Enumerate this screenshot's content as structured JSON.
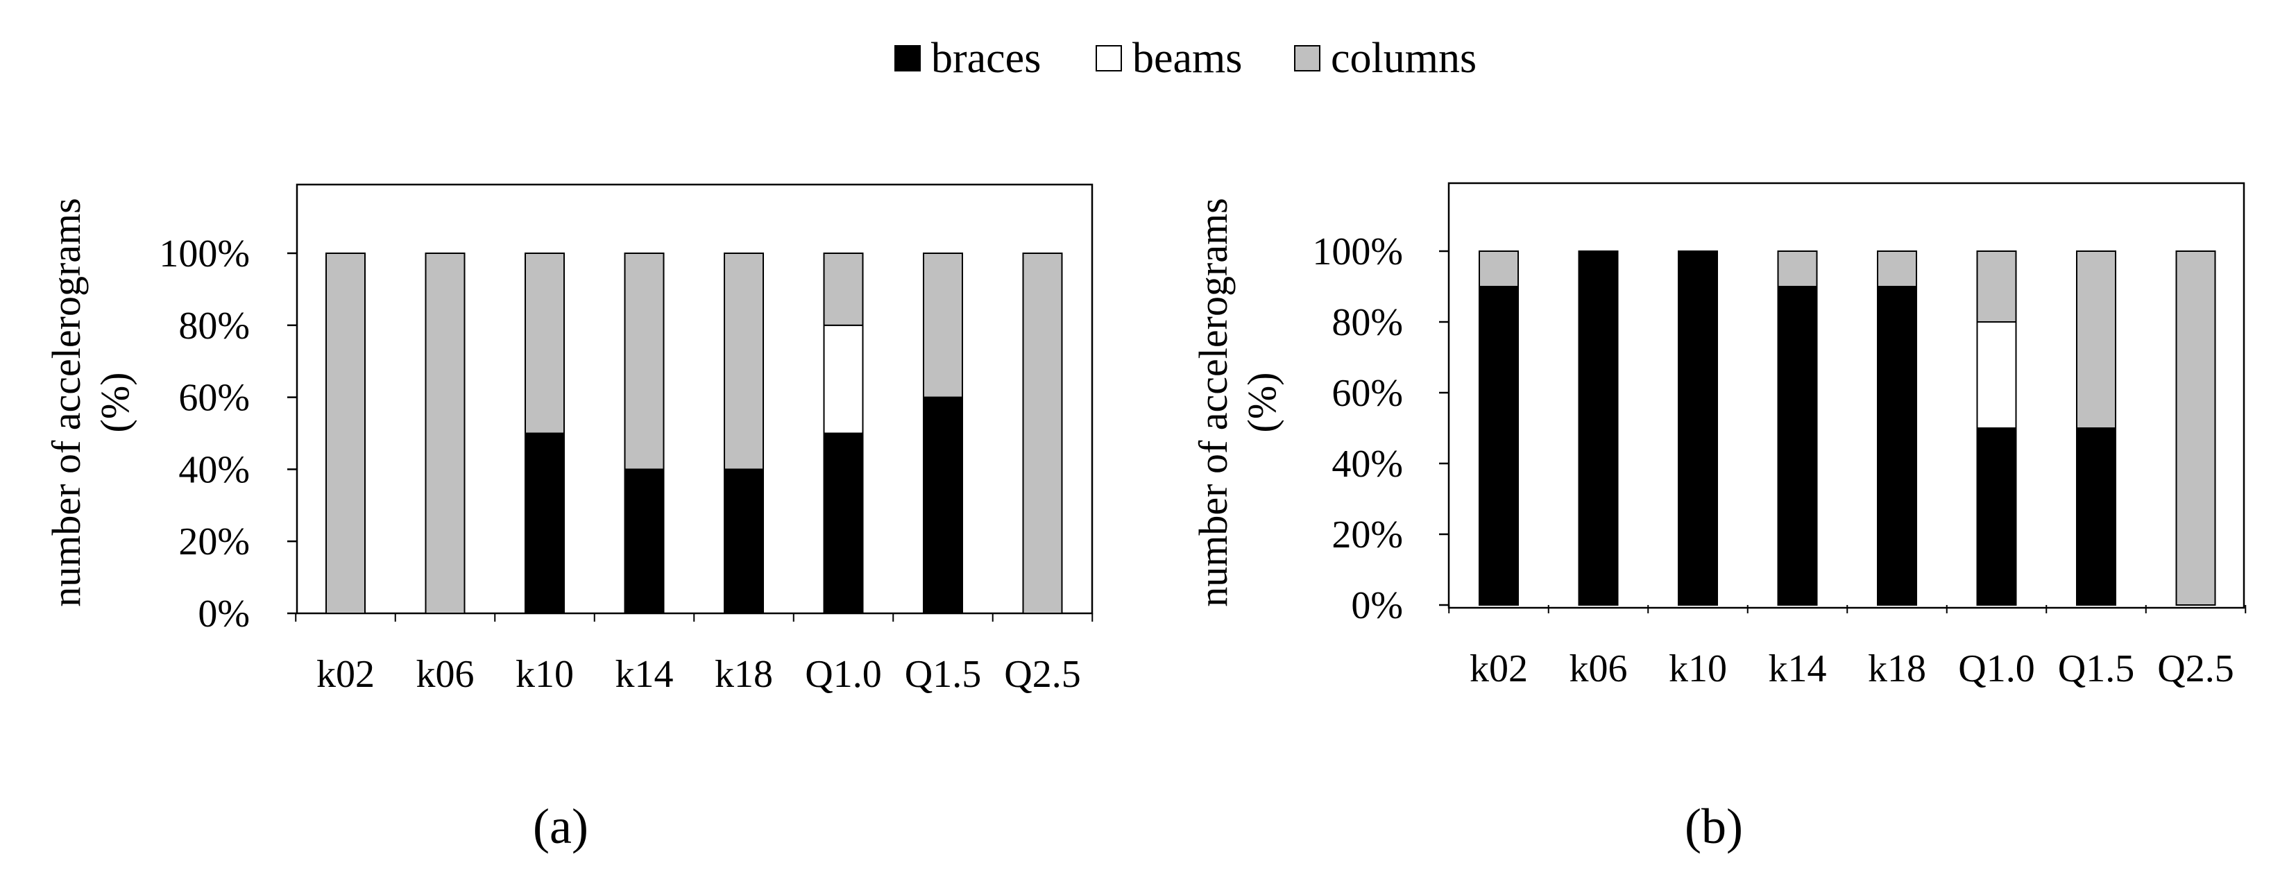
{
  "legend": [
    {
      "label": "braces",
      "color": "#000000"
    },
    {
      "label": "beams",
      "color": "#ffffff"
    },
    {
      "label": "columns",
      "color": "#c0c0c0"
    }
  ],
  "panel_labels": [
    "(a)",
    "(b)"
  ],
  "chart_data": [
    {
      "type": "bar",
      "stacked": true,
      "panel": "(a)",
      "categories": [
        "k02",
        "k06",
        "k10",
        "k14",
        "k18",
        "Q1.0",
        "Q1.5",
        "Q2.5"
      ],
      "series": [
        {
          "name": "braces",
          "values": [
            0,
            0,
            50,
            40,
            40,
            50,
            60,
            0
          ]
        },
        {
          "name": "beams",
          "values": [
            0,
            0,
            0,
            0,
            0,
            30,
            0,
            0
          ]
        },
        {
          "name": "columns",
          "values": [
            100,
            100,
            50,
            60,
            60,
            20,
            40,
            100
          ]
        }
      ],
      "ylabel_lines": [
        "number of accelerograms",
        "(%)"
      ],
      "ylim": [
        0,
        100
      ],
      "yticks": [
        "0%",
        "20%",
        "40%",
        "60%",
        "80%",
        "100%"
      ],
      "grid": false,
      "legend_position": "top-center"
    },
    {
      "type": "bar",
      "stacked": true,
      "panel": "(b)",
      "categories": [
        "k02",
        "k06",
        "k10",
        "k14",
        "k18",
        "Q1.0",
        "Q1.5",
        "Q2.5"
      ],
      "series": [
        {
          "name": "braces",
          "values": [
            90,
            100,
            100,
            90,
            90,
            50,
            50,
            0
          ]
        },
        {
          "name": "beams",
          "values": [
            0,
            0,
            0,
            0,
            0,
            30,
            0,
            0
          ]
        },
        {
          "name": "columns",
          "values": [
            10,
            0,
            0,
            10,
            10,
            20,
            50,
            100
          ]
        }
      ],
      "ylabel_lines": [
        "number of accelerograms",
        "(%)"
      ],
      "ylim": [
        0,
        100
      ],
      "yticks": [
        "0%",
        "20%",
        "40%",
        "60%",
        "80%",
        "100%"
      ],
      "grid": false,
      "legend_position": "top-center"
    }
  ]
}
